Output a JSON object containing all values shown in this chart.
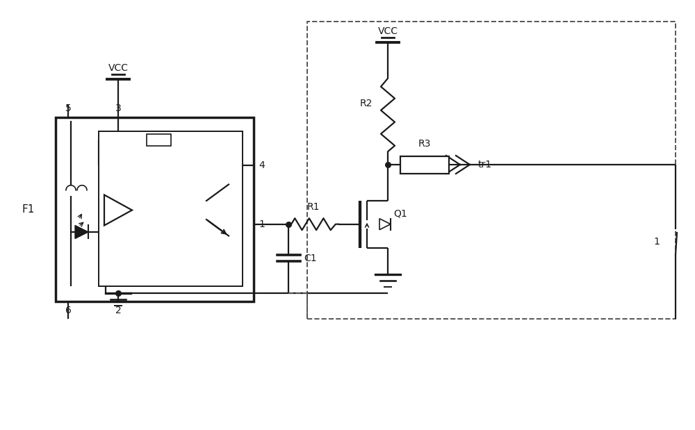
{
  "bg": "#ffffff",
  "lc": "#1a1a1a",
  "dc": "#555555",
  "figsize": [
    10.0,
    6.19
  ],
  "dpi": 100,
  "xlim": [
    0,
    10
  ],
  "ylim": [
    0,
    6.19
  ]
}
